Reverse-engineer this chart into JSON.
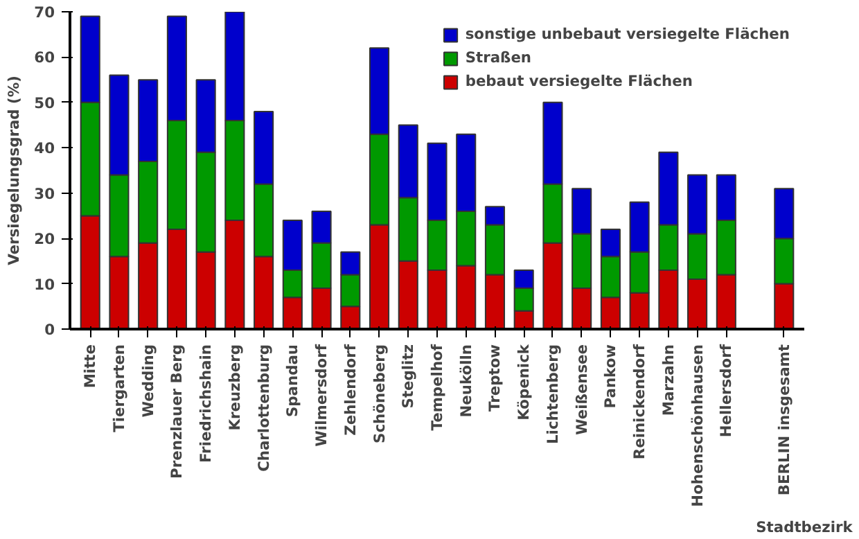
{
  "chart_data": {
    "type": "bar",
    "stacked": true,
    "xlabel": "Stadtbezirk",
    "ylabel": "Versiegelungsgrad (%)",
    "categories": [
      "Mitte",
      "Tiergarten",
      "Wedding",
      "Prenzlauer Berg",
      "Friedrichshain",
      "Kreuzberg",
      "Charlottenburg",
      "Spandau",
      "Wilmersdorf",
      "Zehlendorf",
      "Schöneberg",
      "Steglitz",
      "Tempelhof",
      "Neukölln",
      "Treptow",
      "Köpenick",
      "Lichtenberg",
      "Weißensee",
      "Pankow",
      "Reinickendorf",
      "Marzahn",
      "Hohenschönhausen",
      "Hellersdorf",
      null,
      "BERLIN insgesamt"
    ],
    "series": [
      {
        "name": "bebaut versiegelte Flächen",
        "color": "#cc0000",
        "values": [
          25,
          16,
          19,
          22,
          17,
          24,
          16,
          7,
          9,
          5,
          23,
          15,
          13,
          14,
          12,
          4,
          19,
          9,
          7,
          8,
          13,
          11,
          12,
          null,
          10
        ]
      },
      {
        "name": "Straßen",
        "color": "#009900",
        "values": [
          25,
          18,
          18,
          24,
          22,
          22,
          16,
          6,
          10,
          7,
          20,
          14,
          11,
          12,
          11,
          5,
          13,
          12,
          9,
          9,
          10,
          10,
          12,
          null,
          10
        ]
      },
      {
        "name": "sonstige unbebaut versiegelte Flächen",
        "color": "#0000cc",
        "values": [
          19,
          22,
          18,
          23,
          16,
          24,
          16,
          11,
          7,
          5,
          19,
          16,
          17,
          17,
          4,
          4,
          18,
          10,
          6,
          11,
          16,
          13,
          10,
          null,
          11
        ]
      }
    ],
    "ylim": [
      0,
      70
    ],
    "yticks": [
      0,
      10,
      20,
      30,
      40,
      50,
      60,
      70
    ],
    "grid": false,
    "legend": "top right"
  }
}
